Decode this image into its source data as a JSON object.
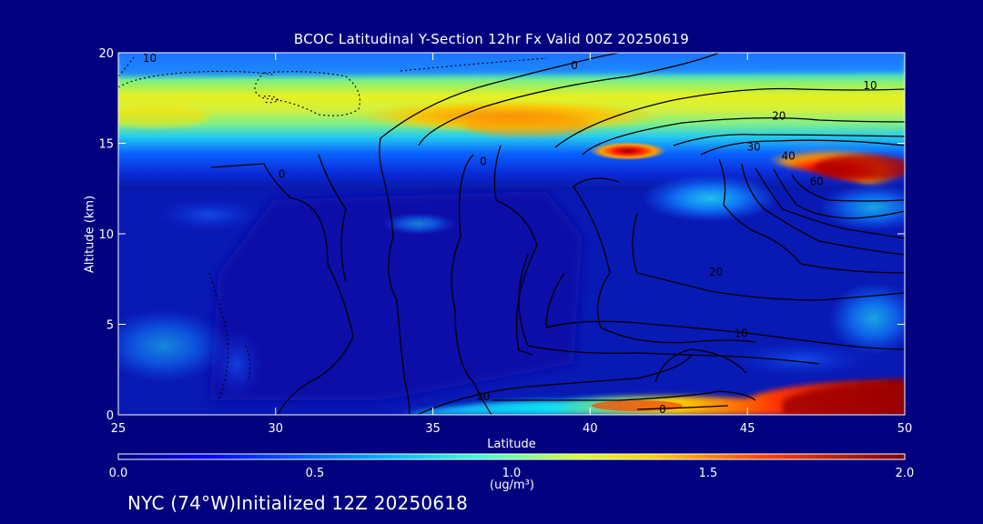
{
  "chart_data": {
    "type": "heatmap",
    "title": "BCOC Latitudinal Y-Section 12hr  Fx Valid 00Z 20250619",
    "xlabel": "Latitude",
    "ylabel": "Altitude (km)",
    "xlim": [
      25,
      50
    ],
    "ylim": [
      0,
      20
    ],
    "x_ticks": [
      25,
      30,
      35,
      40,
      45,
      50
    ],
    "y_ticks": [
      0,
      5,
      10,
      15,
      20
    ],
    "colorbar": {
      "range": [
        0.0,
        2.0
      ],
      "ticks": [
        "0.0",
        "0.5",
        "1.0",
        "1.5",
        "2.0"
      ],
      "label": "(ug/m³)",
      "colormap": "jet"
    },
    "contour_labels": [
      {
        "text": "10",
        "lat": 26.0,
        "alt": 19.7
      },
      {
        "text": "0",
        "lat": 39.5,
        "alt": 19.3
      },
      {
        "text": "10",
        "lat": 48.9,
        "alt": 18.2
      },
      {
        "text": "20",
        "lat": 46.0,
        "alt": 16.5
      },
      {
        "text": "30",
        "lat": 45.2,
        "alt": 14.8
      },
      {
        "text": "40",
        "lat": 46.3,
        "alt": 14.3
      },
      {
        "text": "60",
        "lat": 47.2,
        "alt": 12.9
      },
      {
        "text": "0",
        "lat": 30.2,
        "alt": 13.3
      },
      {
        "text": "0",
        "lat": 36.6,
        "alt": 14.0
      },
      {
        "text": "20",
        "lat": 44.0,
        "alt": 7.9
      },
      {
        "text": "10",
        "lat": 44.8,
        "alt": 4.5
      },
      {
        "text": "10",
        "lat": 36.6,
        "alt": 1.0
      },
      {
        "text": "0",
        "lat": 42.3,
        "alt": 0.3
      }
    ],
    "hotspots": [
      {
        "lat": 48.5,
        "alt": 14.0,
        "value": 2.0
      },
      {
        "lat": 41.4,
        "alt": 14.6,
        "value": 1.9
      },
      {
        "lat": 48.4,
        "alt": 1.0,
        "value": 2.0
      },
      {
        "lat": 38.0,
        "alt": 16.3,
        "value": 1.5
      },
      {
        "lat": 42.0,
        "alt": 0.3,
        "value": 1.4
      }
    ]
  },
  "footer": "NYC (74°W)Initialized 12Z 20250618",
  "colors": {
    "background": "#010180",
    "colormap_stops": [
      "#00007f",
      "#0000ff",
      "#007fff",
      "#00ffff",
      "#7fff7f",
      "#ffff00",
      "#ff7f00",
      "#ff0000",
      "#7f0000"
    ]
  }
}
